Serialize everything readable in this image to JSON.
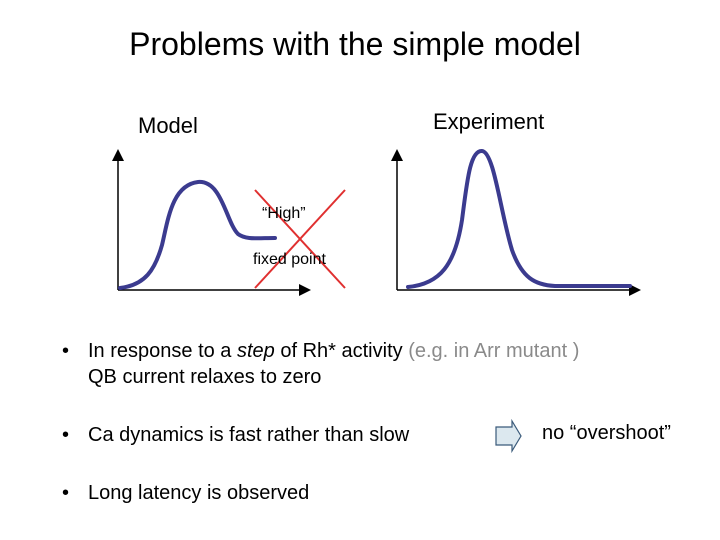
{
  "title": "Problems with the simple model",
  "panels": {
    "model_label": "Model",
    "experiment_label": "Experiment"
  },
  "annotations": {
    "high": "“High”",
    "fixed_point": "fixed point"
  },
  "bullets": {
    "b1": {
      "pre": "In response to a ",
      "step": "step",
      "mid": " of Rh* activity ",
      "grey": "(e.g. in Arr mutant )",
      "line2": "QB current relaxes to zero"
    },
    "b2": "Ca dynamics is fast  rather than slow",
    "b2_result": "no “overshoot”",
    "b3": "Long latency is observed"
  },
  "colors": {
    "curve": "#3b3b8f",
    "cross": "#e03030",
    "arrow_fill": "#dce8ef"
  }
}
